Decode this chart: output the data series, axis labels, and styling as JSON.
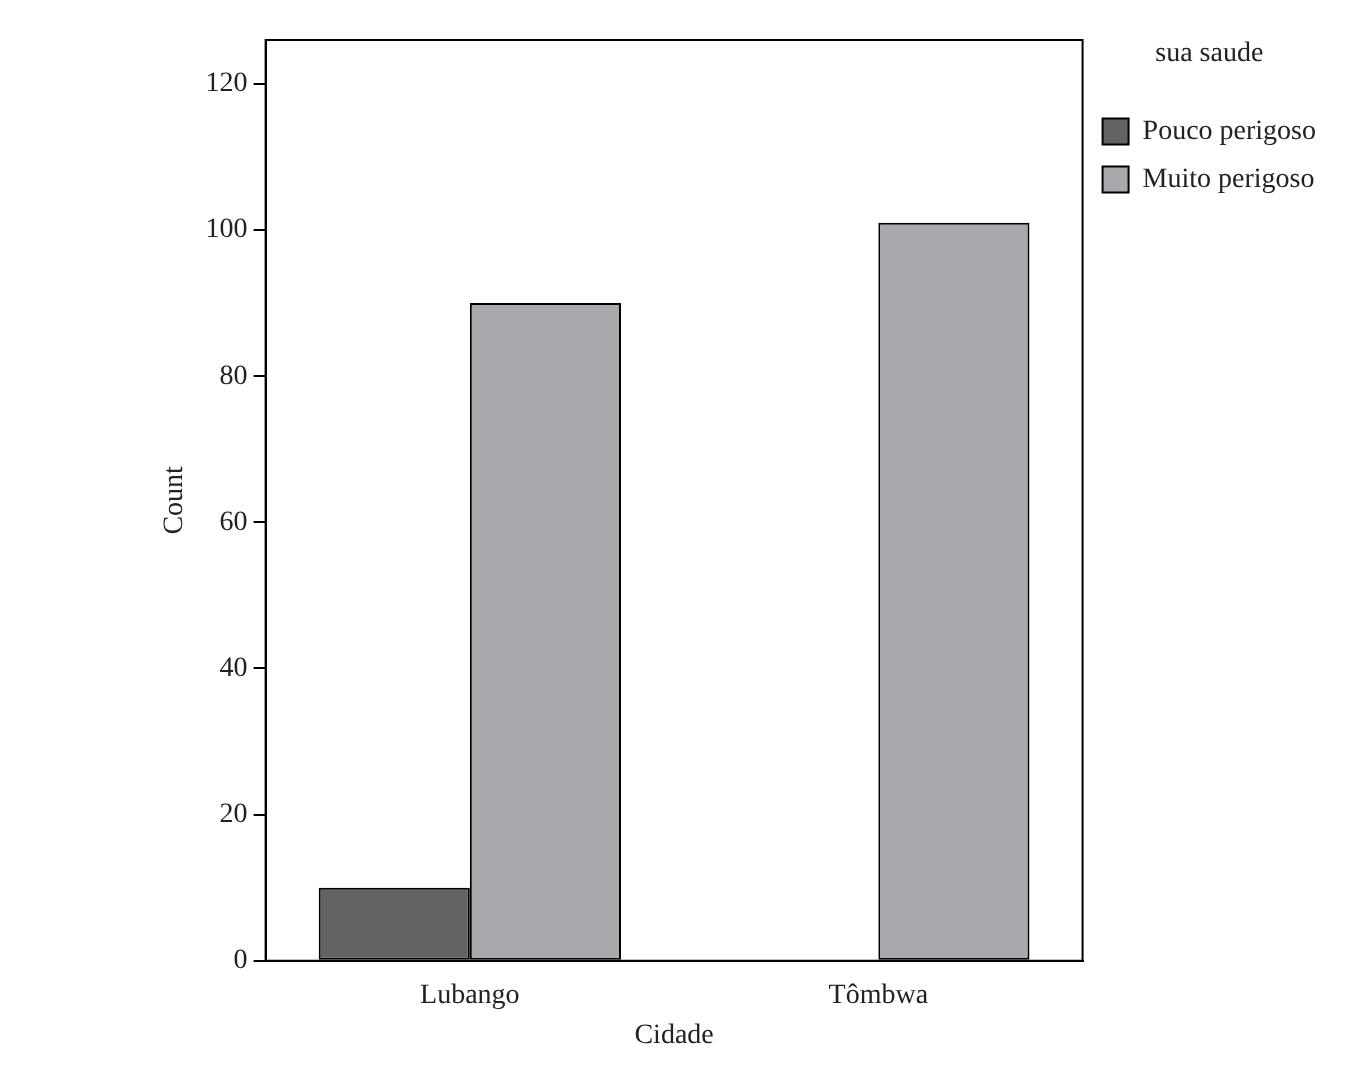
{
  "chart_data": {
    "type": "bar",
    "xlabel": "Cidade",
    "ylabel": "Count",
    "legend_title": "sua saude",
    "legend": "top right",
    "categories": [
      "Lubango",
      "Tômbwa"
    ],
    "series": [
      {
        "name": "Pouco perigoso",
        "color": "#636366",
        "values": [
          10,
          0
        ]
      },
      {
        "name": "Muito perigoso",
        "color": "#a8a9ad",
        "values": [
          90,
          101
        ]
      }
    ],
    "ylim": [
      0,
      126
    ],
    "yticks": [
      0,
      20,
      40,
      60,
      80,
      100,
      120
    ],
    "grid": false
  }
}
